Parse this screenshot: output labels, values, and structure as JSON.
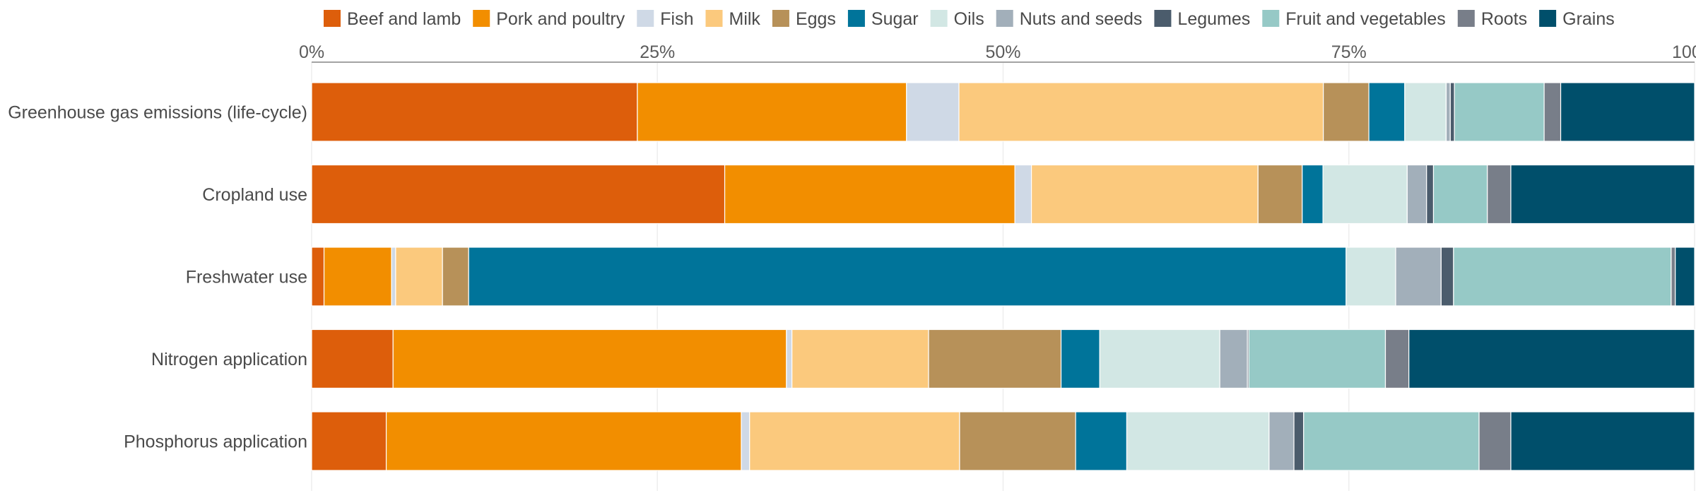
{
  "chart_data": {
    "type": "bar",
    "orientation": "horizontal",
    "stacked": true,
    "normalized": true,
    "title": "",
    "xlabel": "",
    "ylabel": "",
    "xlim": [
      0,
      100
    ],
    "x_ticks": [
      {
        "value": 0,
        "label": "0%"
      },
      {
        "value": 25,
        "label": "25%"
      },
      {
        "value": 50,
        "label": "50%"
      },
      {
        "value": 75,
        "label": "75%"
      },
      {
        "value": 100,
        "label": "100%"
      }
    ],
    "grid": true,
    "legend_position": "top-left",
    "categories": [
      "Greenhouse gas emissions (life-cycle)",
      "Cropland use",
      "Freshwater use",
      "Nitrogen application",
      "Phosphorus application"
    ],
    "series": [
      {
        "name": "Beef and lamb",
        "color": "#dd5e0b",
        "values": [
          23.6,
          29.9,
          0.9,
          5.9,
          5.4
        ]
      },
      {
        "name": "Pork and poultry",
        "color": "#f28e00",
        "values": [
          19.5,
          21.0,
          4.9,
          28.5,
          25.7
        ]
      },
      {
        "name": "Fish",
        "color": "#cfd9e6",
        "values": [
          3.8,
          1.2,
          0.3,
          0.4,
          0.6
        ]
      },
      {
        "name": "Milk",
        "color": "#fbc97d",
        "values": [
          26.4,
          16.4,
          3.4,
          9.9,
          15.2
        ]
      },
      {
        "name": "Eggs",
        "color": "#b79159",
        "values": [
          3.3,
          3.2,
          1.9,
          9.6,
          8.4
        ]
      },
      {
        "name": "Sugar",
        "color": "#00749a",
        "values": [
          2.6,
          1.5,
          63.7,
          2.8,
          3.7
        ]
      },
      {
        "name": "Oils",
        "color": "#d2e7e4",
        "values": [
          3.0,
          6.1,
          3.6,
          8.7,
          10.3
        ]
      },
      {
        "name": "Nuts and seeds",
        "color": "#a2afba",
        "values": [
          0.3,
          1.4,
          3.3,
          2.0,
          1.8
        ]
      },
      {
        "name": "Legumes",
        "color": "#4b5c6c",
        "values": [
          0.3,
          0.5,
          0.9,
          0.1,
          0.7
        ]
      },
      {
        "name": "Fruit and vegetables",
        "color": "#96c9c6",
        "values": [
          6.5,
          3.9,
          15.8,
          9.9,
          12.7
        ]
      },
      {
        "name": "Roots",
        "color": "#787e89",
        "values": [
          1.2,
          1.7,
          0.3,
          1.7,
          2.3
        ]
      },
      {
        "name": "Grains",
        "color": "#004f6b",
        "values": [
          9.7,
          13.3,
          1.4,
          20.7,
          13.3
        ]
      }
    ]
  }
}
